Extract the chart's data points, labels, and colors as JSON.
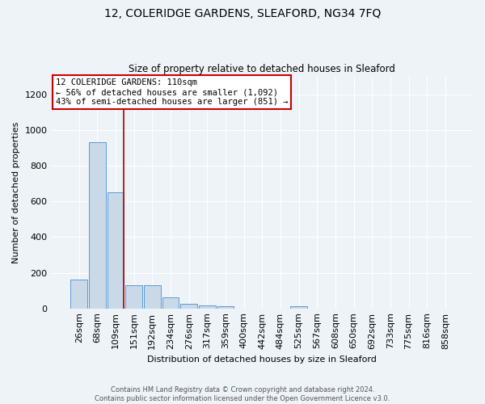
{
  "title": "12, COLERIDGE GARDENS, SLEAFORD, NG34 7FQ",
  "subtitle": "Size of property relative to detached houses in Sleaford",
  "xlabel": "Distribution of detached houses by size in Sleaford",
  "ylabel": "Number of detached properties",
  "footer_line1": "Contains HM Land Registry data © Crown copyright and database right 2024.",
  "footer_line2": "Contains public sector information licensed under the Open Government Licence v3.0.",
  "categories": [
    "26sqm",
    "68sqm",
    "109sqm",
    "151sqm",
    "192sqm",
    "234sqm",
    "276sqm",
    "317sqm",
    "359sqm",
    "400sqm",
    "442sqm",
    "484sqm",
    "525sqm",
    "567sqm",
    "608sqm",
    "650sqm",
    "692sqm",
    "733sqm",
    "775sqm",
    "816sqm",
    "858sqm"
  ],
  "values": [
    160,
    930,
    650,
    130,
    130,
    60,
    25,
    15,
    12,
    0,
    0,
    0,
    12,
    0,
    0,
    0,
    0,
    0,
    0,
    0,
    0
  ],
  "bar_color": "#c9d9e8",
  "bar_edge_color": "#5b9bd5",
  "background_color": "#eef3f8",
  "grid_color": "#ffffff",
  "annotation_box_color": "#ffffff",
  "annotation_box_edge": "#cc0000",
  "red_line_index": 2,
  "annotation_line1": "12 COLERIDGE GARDENS: 110sqm",
  "annotation_line2": "← 56% of detached houses are smaller (1,092)",
  "annotation_line3": "43% of semi-detached houses are larger (851) →",
  "ylim": [
    0,
    1300
  ],
  "yticks": [
    0,
    200,
    400,
    600,
    800,
    1000,
    1200
  ],
  "title_fontsize": 10,
  "subtitle_fontsize": 8.5,
  "axis_label_fontsize": 8,
  "tick_fontsize": 8,
  "annotation_fontsize": 7.5,
  "footer_fontsize": 6
}
